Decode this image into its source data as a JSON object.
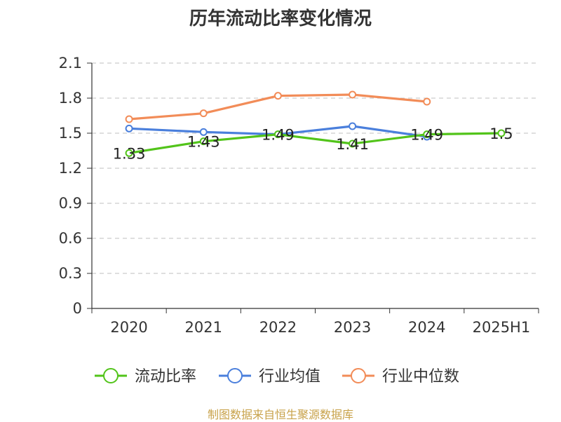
{
  "title": "历年流动比率变化情况",
  "source": "制图数据来自恒生聚源数据库",
  "chart_data": {
    "type": "line",
    "categories": [
      "2020",
      "2021",
      "2022",
      "2023",
      "2024",
      "2025H1"
    ],
    "ylim": [
      0,
      2.1
    ],
    "yticks": [
      "0",
      "0.3",
      "0.6",
      "0.9",
      "1.2",
      "1.5",
      "1.8",
      "2.1"
    ],
    "grid": true,
    "legend": "bottom",
    "series": [
      {
        "name": "流动比率",
        "color": "#52c41a",
        "values": [
          1.33,
          1.43,
          1.49,
          1.41,
          1.49,
          1.5
        ],
        "labels": [
          "1.33",
          "1.43",
          "1.49",
          "1.41",
          "1.49",
          "1.5"
        ]
      },
      {
        "name": "行业均值",
        "color": "#4a7fdc",
        "values": [
          1.54,
          1.51,
          1.49,
          1.56,
          1.47,
          null
        ]
      },
      {
        "name": "行业中位数",
        "color": "#f28c58",
        "values": [
          1.62,
          1.67,
          1.82,
          1.83,
          1.77,
          null
        ]
      }
    ]
  }
}
